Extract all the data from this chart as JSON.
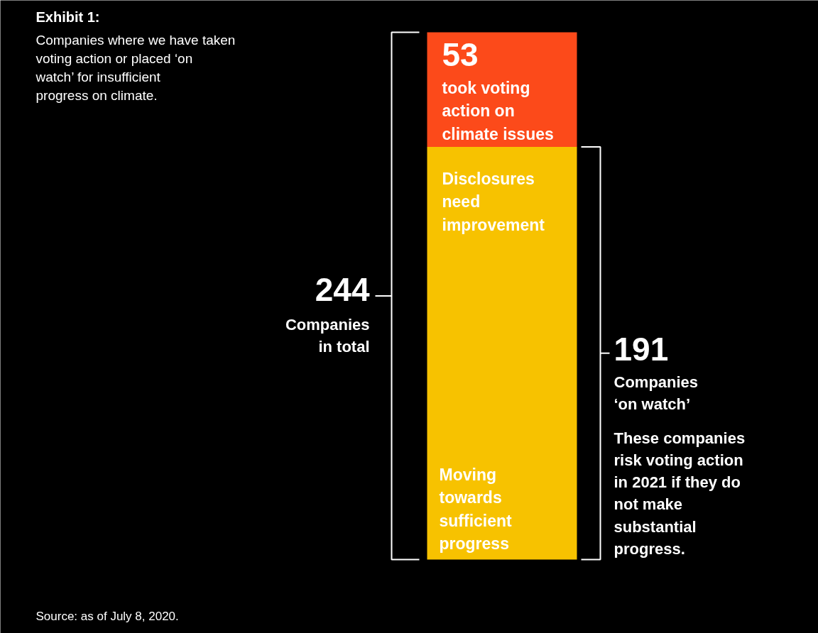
{
  "chart_data": {
    "type": "bar",
    "stacked": true,
    "title": "Exhibit 1:",
    "subtitle": "Companies where we have taken voting action or placed ‘on watch’ for insufficient progress on climate.",
    "categories": [
      null
    ],
    "series": [
      {
        "name": null,
        "color": "#f7c200",
        "values": [
          191
        ]
      },
      {
        "name": null,
        "color": "#fc4a1a",
        "values": [
          53
        ],
        "value_labels": [
          "53"
        ]
      }
    ],
    "totals": [
      "244"
    ],
    "annotations": [
      "took voting action on climate issues",
      "Disclosures need improvement",
      "Moving towards sufficient progress",
      "Companies in total",
      "Companies ‘on watch’",
      "These companies risk voting action in 2021 if they do not make substantial progress.",
      "Source: as of July 8, 2020.",
      "191"
    ]
  }
}
